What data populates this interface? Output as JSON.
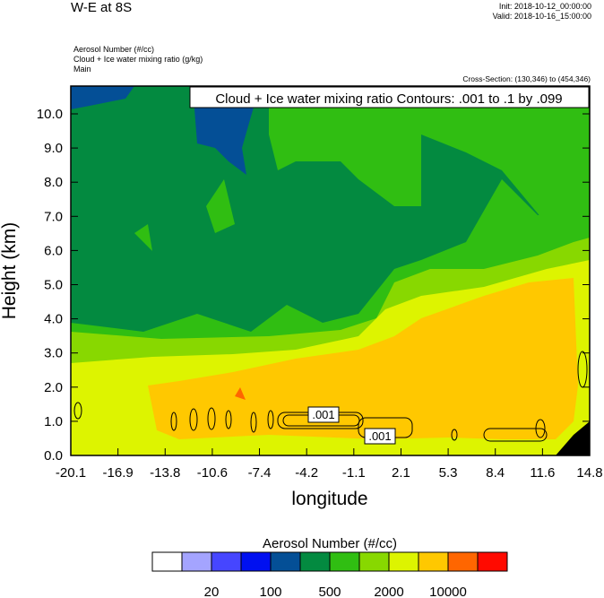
{
  "header": {
    "title": "W-E at 8S",
    "init": "Init: 2018-10-12_00:00:00",
    "valid": "Valid: 2018-10-16_15:00:00",
    "fields": [
      "Aerosol Number   (#/cc)",
      "Cloud + Ice water mixing ratio   (g/kg)",
      "Main"
    ],
    "cross_section": "Cross-Section: (130,346) to (454,346)"
  },
  "chart_data": {
    "type": "heatmap",
    "title": "W-E at 8S",
    "xlabel": "longitude",
    "ylabel": "Height (km)",
    "xlim": [
      -20.1,
      14.8
    ],
    "ylim": [
      0,
      10.8
    ],
    "xticks": [
      "-20.1",
      "-16.9",
      "-13.8",
      "-10.6",
      "-7.4",
      "-4.2",
      "-1.1",
      "2.1",
      "5.3",
      "8.4",
      "11.6",
      "14.8"
    ],
    "yticks": [
      "0.0",
      "1.0",
      "2.0",
      "3.0",
      "4.0",
      "5.0",
      "6.0",
      "7.0",
      "8.0",
      "9.0",
      "10.0"
    ],
    "contour_title": "Cloud + Ice water mixing ratio Contours: .001 to .1 by .099",
    "contour_labels": [
      ".001",
      ".001"
    ],
    "colorbar": {
      "title": "Aerosol Number  (#/cc)",
      "colors": [
        "#ffffff",
        "#a4a4ff",
        "#4646ff",
        "#0010f0",
        "#044f96",
        "#038a40",
        "#30be12",
        "#88d800",
        "#ddf400",
        "#ffc800",
        "#ff6600",
        "#ff0a00"
      ],
      "labels": [
        "20",
        "100",
        "500",
        "2000",
        "10000"
      ]
    }
  }
}
